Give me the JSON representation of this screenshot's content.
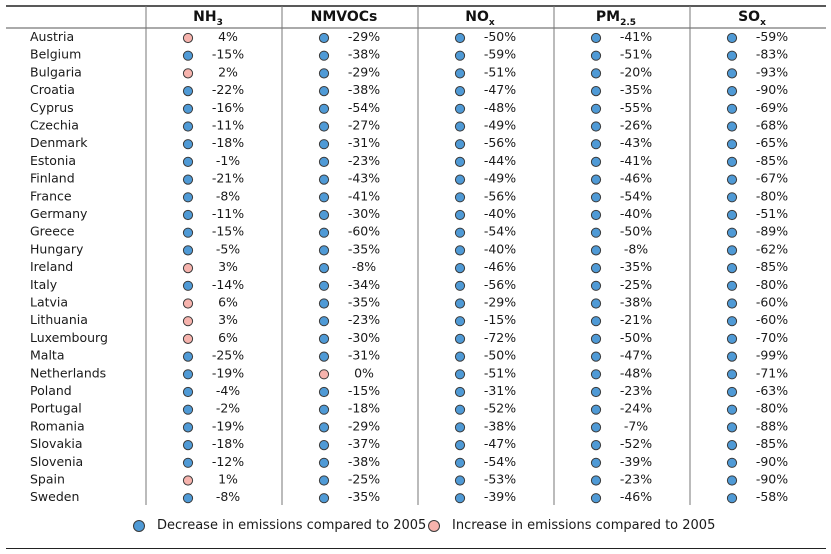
{
  "colors": {
    "decrease": "#4f9ad6",
    "increase": "#f6b3ad",
    "stroke": "#3a3a3a"
  },
  "chart_data": {
    "type": "table",
    "pollutants": [
      {
        "key": "NH3",
        "main": "NH",
        "sub": "3"
      },
      {
        "key": "NMVOCs",
        "main": "NMVOCs",
        "sub": ""
      },
      {
        "key": "NOx",
        "main": "NO",
        "sub": "x"
      },
      {
        "key": "PM2.5",
        "main": "PM",
        "sub": "2.5"
      },
      {
        "key": "SOx",
        "main": "SO",
        "sub": "x"
      }
    ],
    "rows": [
      {
        "country": "Austria",
        "values": [
          4,
          -29,
          -50,
          -41,
          -59
        ]
      },
      {
        "country": "Belgium",
        "values": [
          -15,
          -38,
          -59,
          -51,
          -83
        ]
      },
      {
        "country": "Bulgaria",
        "values": [
          2,
          -29,
          -51,
          -20,
          -93
        ]
      },
      {
        "country": "Croatia",
        "values": [
          -22,
          -38,
          -47,
          -35,
          -90
        ]
      },
      {
        "country": "Cyprus",
        "values": [
          -16,
          -54,
          -48,
          -55,
          -69
        ]
      },
      {
        "country": "Czechia",
        "values": [
          -11,
          -27,
          -49,
          -26,
          -68
        ]
      },
      {
        "country": "Denmark",
        "values": [
          -18,
          -31,
          -56,
          -43,
          -65
        ]
      },
      {
        "country": "Estonia",
        "values": [
          -1,
          -23,
          -44,
          -41,
          -85
        ]
      },
      {
        "country": "Finland",
        "values": [
          -21,
          -43,
          -49,
          -46,
          -67
        ]
      },
      {
        "country": "France",
        "values": [
          -8,
          -41,
          -56,
          -54,
          -80
        ]
      },
      {
        "country": "Germany",
        "values": [
          -11,
          -30,
          -40,
          -40,
          -51
        ]
      },
      {
        "country": "Greece",
        "values": [
          -15,
          -60,
          -54,
          -50,
          -89
        ]
      },
      {
        "country": "Hungary",
        "values": [
          -5,
          -35,
          -40,
          -8,
          -62
        ]
      },
      {
        "country": "Ireland",
        "values": [
          3,
          -8,
          -46,
          -35,
          -85
        ]
      },
      {
        "country": "Italy",
        "values": [
          -14,
          -34,
          -56,
          -25,
          -80
        ]
      },
      {
        "country": "Latvia",
        "values": [
          6,
          -35,
          -29,
          -38,
          -60
        ]
      },
      {
        "country": "Lithuania",
        "values": [
          3,
          -23,
          -15,
          -21,
          -60
        ]
      },
      {
        "country": "Luxembourg",
        "values": [
          6,
          -30,
          -72,
          -50,
          -70
        ]
      },
      {
        "country": "Malta",
        "values": [
          -25,
          -31,
          -50,
          -47,
          -99
        ]
      },
      {
        "country": "Netherlands",
        "values": [
          -19,
          0,
          -51,
          -48,
          -71
        ]
      },
      {
        "country": "Poland",
        "values": [
          -4,
          -15,
          -31,
          -23,
          -63
        ]
      },
      {
        "country": "Portugal",
        "values": [
          -2,
          -18,
          -52,
          -24,
          -80
        ]
      },
      {
        "country": "Romania",
        "values": [
          -19,
          -29,
          -38,
          -7,
          -88
        ]
      },
      {
        "country": "Slovakia",
        "values": [
          -18,
          -37,
          -47,
          -52,
          -85
        ]
      },
      {
        "country": "Slovenia",
        "values": [
          -12,
          -38,
          -54,
          -39,
          -90
        ]
      },
      {
        "country": "Spain",
        "values": [
          1,
          -25,
          -53,
          -23,
          -90
        ]
      },
      {
        "country": "Sweden",
        "values": [
          -8,
          -35,
          -39,
          -46,
          -58
        ]
      }
    ],
    "value_unit": "%",
    "legend": [
      {
        "label": "Decrease in emissions compared to 2005",
        "color": "#4f9ad6"
      },
      {
        "label": "Increase in emissions compared to 2005",
        "color": "#f6b3ad"
      }
    ],
    "legend_position": "bottom"
  }
}
